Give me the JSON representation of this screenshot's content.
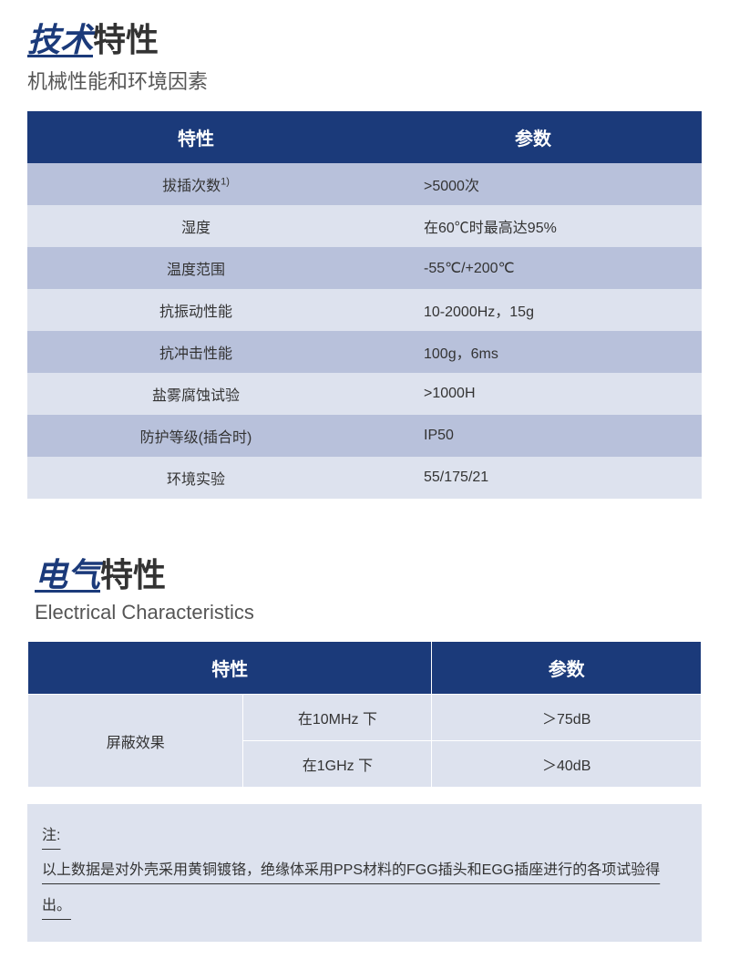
{
  "section1": {
    "title_highlight": "技术",
    "title_normal": "特性",
    "subtitle": "机械性能和环境因素",
    "table": {
      "header_col1": "特性",
      "header_col2": "参数",
      "rows": [
        {
          "label": "拔插次数",
          "sup": "1)",
          "value": ">5000次"
        },
        {
          "label": "湿度",
          "sup": "",
          "value": "在60℃时最高达95%"
        },
        {
          "label": "温度范围",
          "sup": "",
          "value": "-55℃/+200℃"
        },
        {
          "label": "抗振动性能",
          "sup": "",
          "value": "10-2000Hz，15g"
        },
        {
          "label": "抗冲击性能",
          "sup": "",
          "value": "100g，6ms"
        },
        {
          "label": "盐雾腐蚀试验",
          "sup": "",
          "value": ">1000H"
        },
        {
          "label": "防护等级(插合时)",
          "sup": "",
          "value": "IP50"
        },
        {
          "label": "环境实验",
          "sup": "",
          "value": "55/175/21"
        }
      ]
    }
  },
  "section2": {
    "title_highlight": "电气",
    "title_normal": "特性",
    "subtitle": "Electrical Characteristics",
    "table": {
      "header_col1": "特性",
      "header_col2": "参数",
      "row_label": "屏蔽效果",
      "sub_rows": [
        {
          "condition": "在10MHz 下",
          "value": "＞75dB"
        },
        {
          "condition": "在1GHz 下",
          "value": "＞40dB"
        }
      ]
    },
    "note_label": "注:",
    "note_text": "以上数据是对外壳采用黄铜镀铬，绝缘体采用PPS材料的FGG插头和EGG插座进行的各项试验得出。"
  },
  "colors": {
    "header_bg": "#1b3a7a",
    "header_text": "#ffffff",
    "row_odd_bg": "#b8c1db",
    "row_even_bg": "#dde2ee",
    "text": "#333333",
    "subtitle": "#555555",
    "background": "#ffffff"
  }
}
